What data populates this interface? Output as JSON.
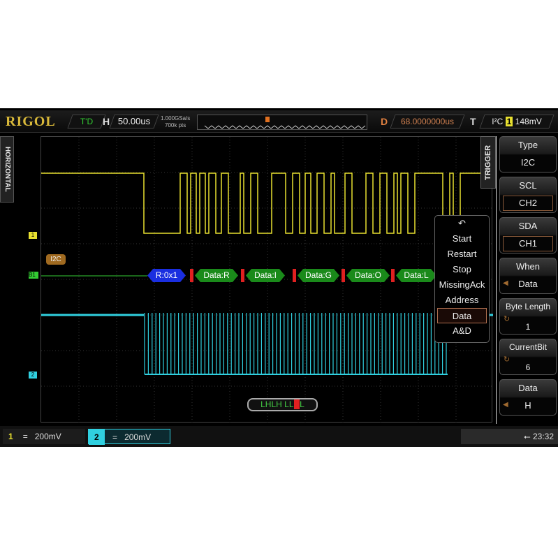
{
  "header": {
    "brand": "RIGOL",
    "run_status": "T'D",
    "horizontal_label": "H",
    "timebase": "50.00us",
    "sample_rate": "1.000GSa/s",
    "memory_depth": "700k pts",
    "delay_label": "D",
    "delay": "68.0000000us",
    "trigger_label": "T",
    "trigger_type": "I²C",
    "trigger_source": "1",
    "trigger_level": "148mV"
  },
  "side_tab": "HORIZONTAL",
  "menu": {
    "title": "TRIGGER",
    "items": [
      {
        "label": "Type",
        "value": "I2C"
      },
      {
        "label": "SCL",
        "value": "CH2"
      },
      {
        "label": "SDA",
        "value": "CH1"
      },
      {
        "label": "When",
        "value": "Data"
      },
      {
        "label": "Byte Length",
        "value": "1"
      },
      {
        "label": "CurrentBit",
        "value": "6"
      },
      {
        "label": "Data",
        "value": "H"
      }
    ]
  },
  "when_popup": {
    "options": [
      "Start",
      "Restart",
      "Stop",
      "MissingAck",
      "Address",
      "Data",
      "A&D"
    ],
    "selected": "Data"
  },
  "decoder": {
    "label": "I2C",
    "bus_marker": "B1",
    "packets": [
      "R:0x1",
      "Data:R",
      "Data:I",
      "Data:G",
      "Data:O",
      "Data:L"
    ]
  },
  "channel_markers": {
    "ch1": "1",
    "ch2": "2"
  },
  "bit_pattern": {
    "before": "LHLH LL",
    "current": "H",
    "after": "L"
  },
  "footer": {
    "ch1": {
      "num": "1",
      "coupling": "=",
      "scale": "200mV"
    },
    "ch2": {
      "num": "2",
      "coupling": "=",
      "scale": "200mV"
    },
    "time": "23:32"
  },
  "colors": {
    "ch1": "#e8e030",
    "ch2": "#30d0e0",
    "decode": "#1a8a1a",
    "address": "#1a2ee0",
    "brand": "#d9b93a"
  }
}
